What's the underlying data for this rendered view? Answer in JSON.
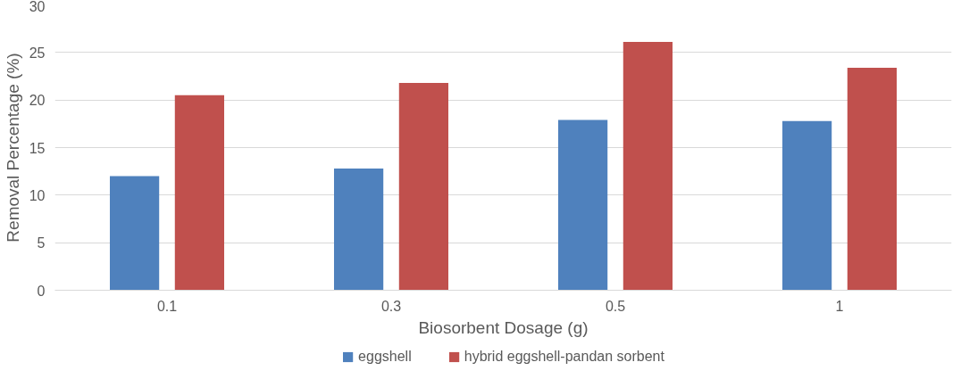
{
  "chart_data": {
    "type": "bar",
    "xlabel": "Biosorbent Dosage (g)",
    "ylabel": "Removal Percentage (%)",
    "categories": [
      "0.1",
      "0.3",
      "0.5",
      "1"
    ],
    "series": [
      {
        "name": "eggshell",
        "color": "#4f81bd",
        "values": [
          12.0,
          12.8,
          17.9,
          17.8
        ]
      },
      {
        "name": "hybrid eggshell-pandan sorbent",
        "color": "#c0504d",
        "values": [
          20.5,
          21.8,
          26.1,
          23.4
        ]
      }
    ],
    "ylim": [
      0,
      30
    ],
    "yticks": [
      0,
      5,
      10,
      15,
      20,
      25,
      30
    ],
    "grid": "y",
    "legend": "bottom"
  }
}
